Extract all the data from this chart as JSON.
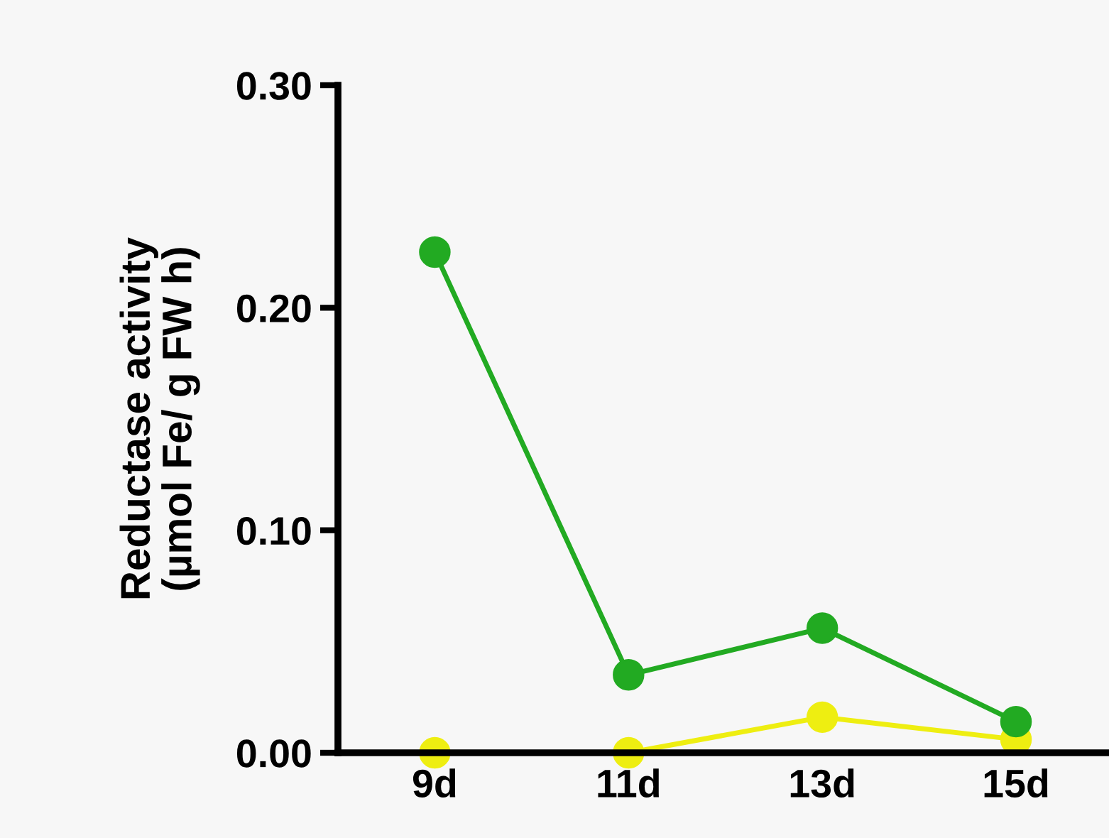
{
  "chart_data": {
    "type": "line",
    "ylabel": "Reductase activity\n(µmol Fe/ g FW h)",
    "categories": [
      "9d",
      "11d",
      "13d",
      "15d"
    ],
    "series": [
      {
        "color": "#22aa22",
        "values": [
          0.225,
          0.035,
          0.056,
          0.014
        ]
      },
      {
        "color": "#eeee11",
        "values": [
          0.0,
          0.0,
          0.016,
          0.006
        ]
      }
    ],
    "ylim": [
      0,
      0.3
    ],
    "yticks": [
      {
        "value": 0,
        "label": "0.00"
      },
      {
        "value": 0.1,
        "label": "0.10"
      },
      {
        "value": 0.2,
        "label": "0.20"
      },
      {
        "value": 0.3,
        "label": "0.30"
      }
    ],
    "grid": false,
    "marker": "circle",
    "line_style": "solid"
  }
}
